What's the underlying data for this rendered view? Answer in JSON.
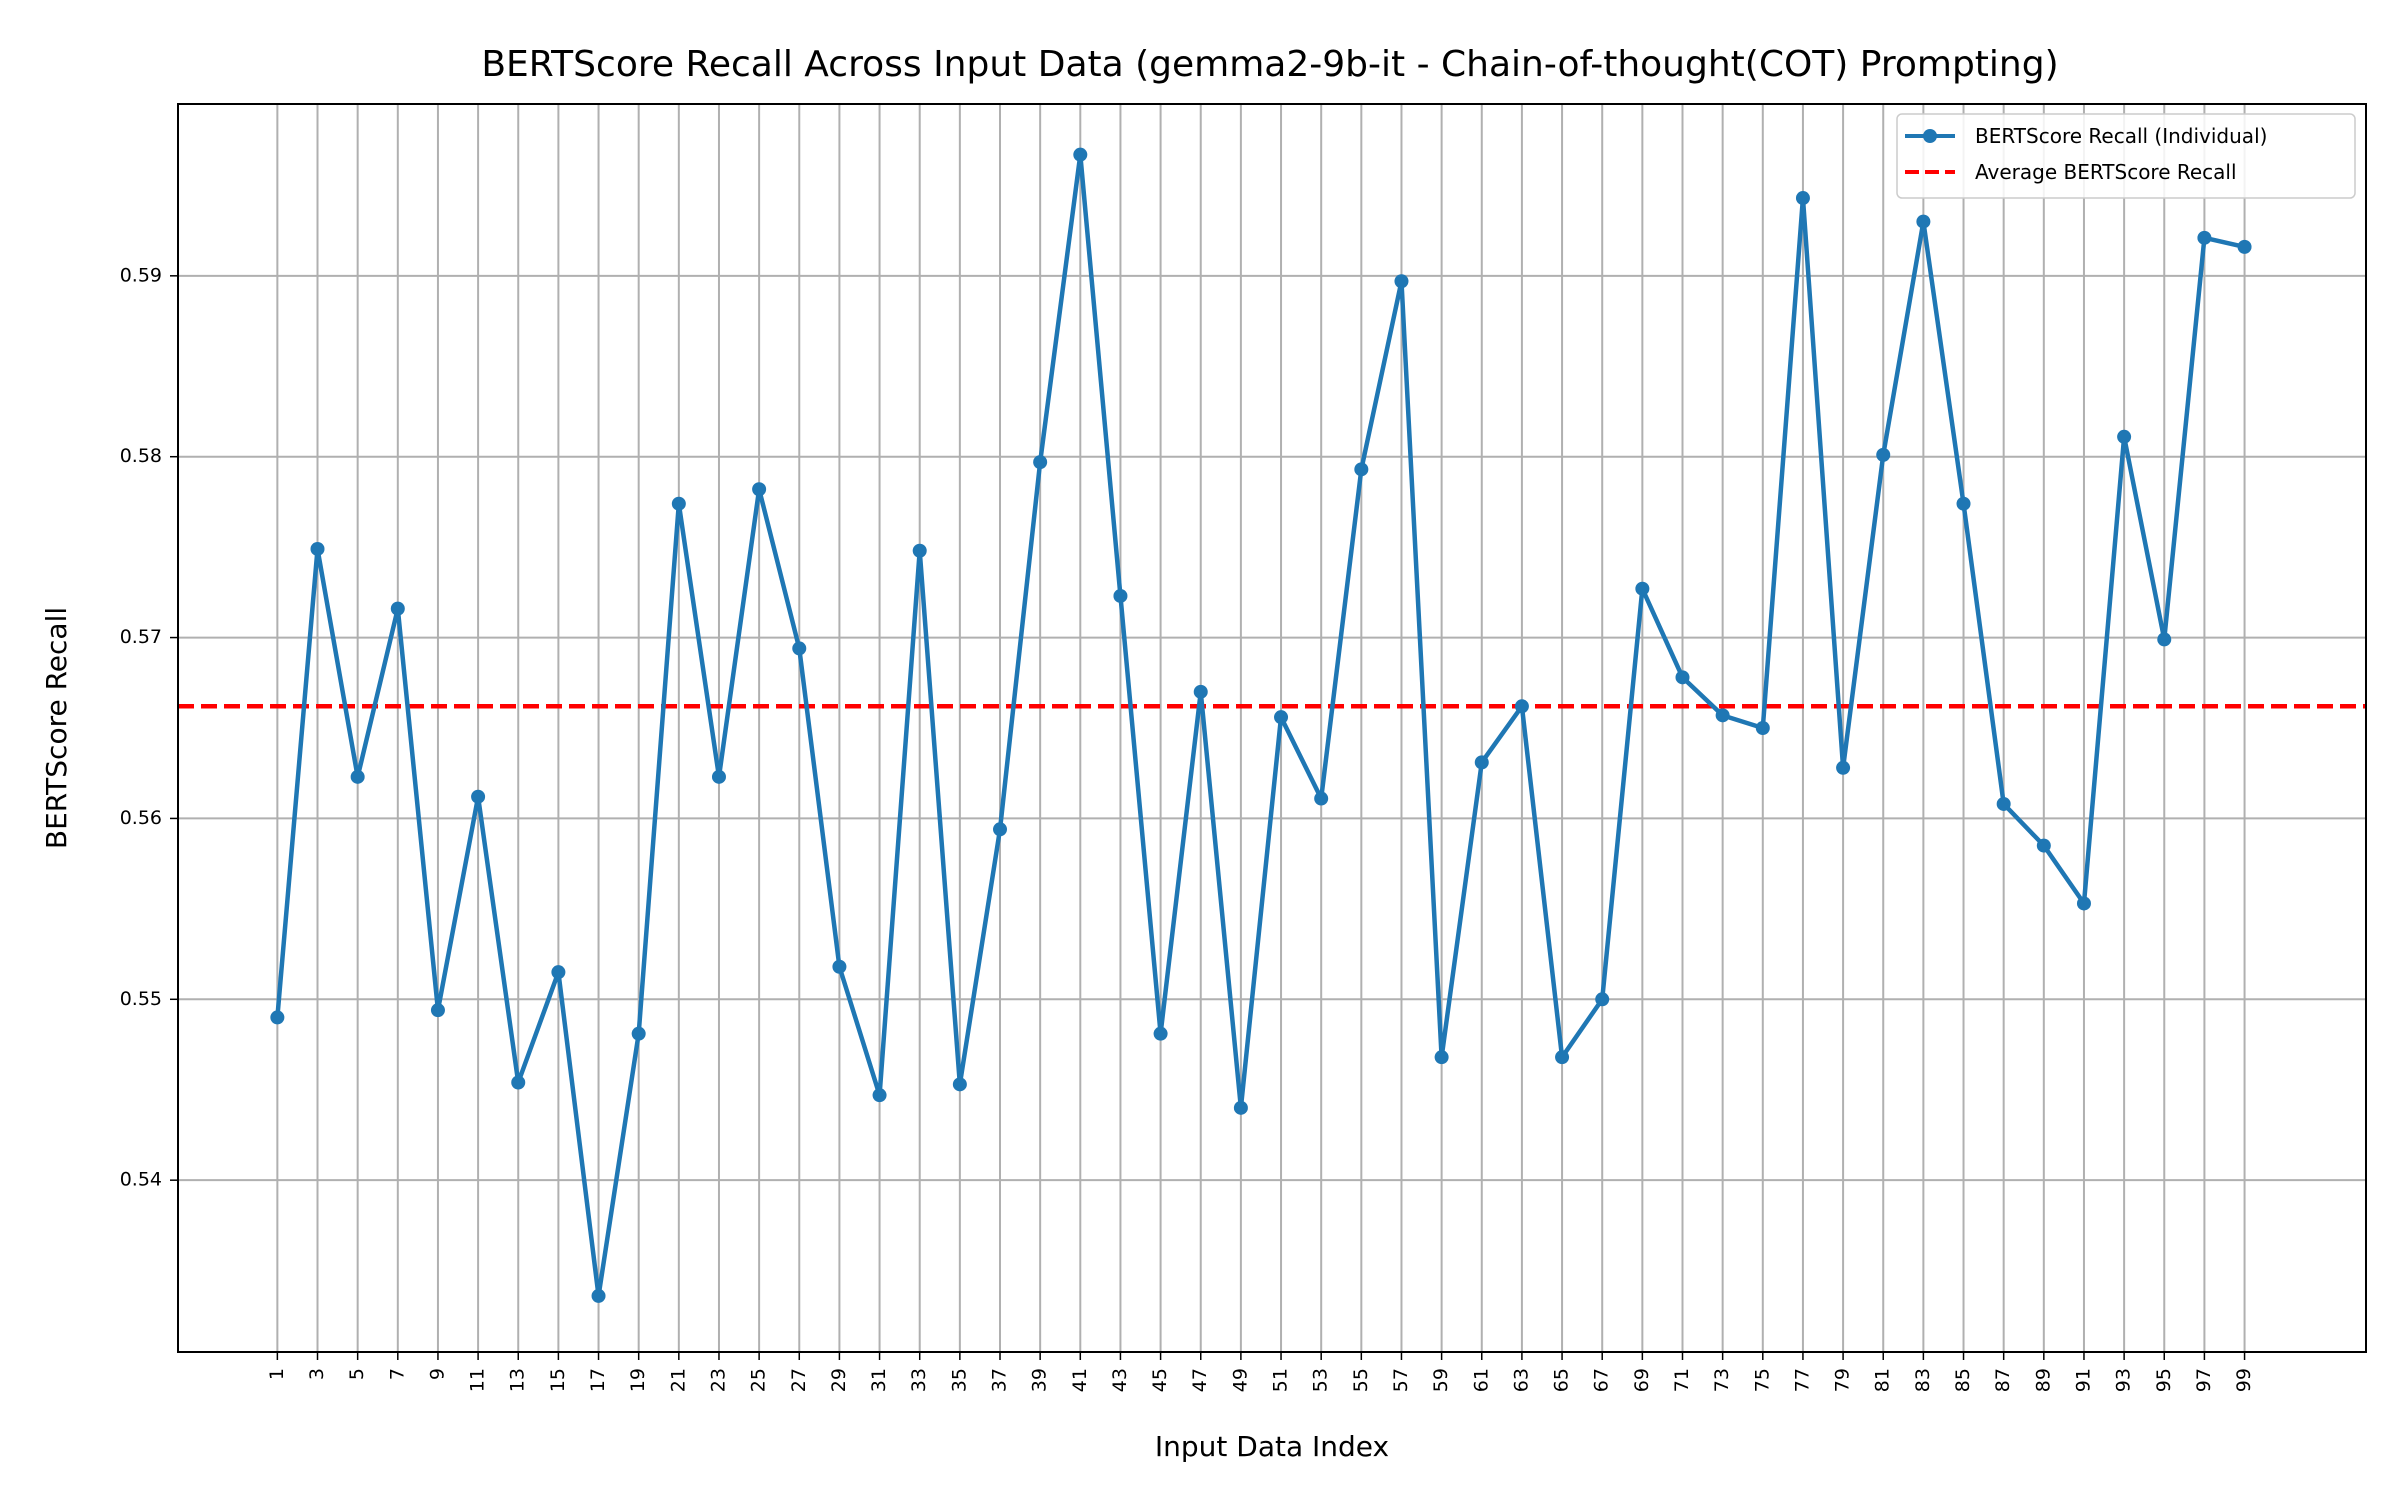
{
  "chart_data": {
    "type": "line",
    "title": "BERTScore Recall Across Input Data (gemma2-9b-it - Chain-of-thought(COT) Prompting)",
    "xlabel": "Input Data Index",
    "ylabel": "BERTScore Recall",
    "x": [
      1,
      3,
      5,
      7,
      9,
      11,
      13,
      15,
      17,
      19,
      21,
      23,
      25,
      27,
      29,
      31,
      33,
      35,
      37,
      39,
      41,
      43,
      45,
      47,
      49,
      51,
      53,
      55,
      57,
      59,
      61,
      63,
      65,
      67,
      69,
      71,
      73,
      75,
      77,
      79,
      81,
      83,
      85,
      87,
      89,
      91,
      93,
      95,
      97,
      99
    ],
    "xticks": [
      "1",
      "3",
      "5",
      "7",
      "9",
      "11",
      "13",
      "15",
      "17",
      "19",
      "21",
      "23",
      "25",
      "27",
      "29",
      "31",
      "33",
      "35",
      "37",
      "39",
      "41",
      "43",
      "45",
      "47",
      "49",
      "51",
      "53",
      "55",
      "57",
      "59",
      "61",
      "63",
      "65",
      "67",
      "69",
      "71",
      "73",
      "75",
      "77",
      "79",
      "81",
      "83",
      "85",
      "87",
      "89",
      "91",
      "93",
      "95",
      "97",
      "99"
    ],
    "yticks": [
      "0.54",
      "0.55",
      "0.56",
      "0.57",
      "0.58",
      "0.59"
    ],
    "xlim": [
      -3.95,
      105.05
    ],
    "ylim": [
      0.5305,
      0.5995
    ],
    "grid": true,
    "legend_position": "top-right",
    "series": [
      {
        "name": "BERTScore Recall (Individual)",
        "color": "#1f77b4",
        "style": "solid-with-markers",
        "values": [
          0.549,
          0.5749,
          0.5623,
          0.5716,
          0.5494,
          0.5612,
          0.5454,
          0.5515,
          0.5336,
          0.5481,
          0.5774,
          0.5623,
          0.5782,
          0.5694,
          0.5518,
          0.5447,
          0.5748,
          0.5453,
          0.5594,
          0.5797,
          0.5967,
          0.5723,
          0.5481,
          0.567,
          0.544,
          0.5656,
          0.5611,
          0.5793,
          0.5897,
          0.5468,
          0.5631,
          0.5662,
          0.5468,
          0.55,
          0.5727,
          0.5678,
          0.5657,
          0.565,
          0.5943,
          0.5628,
          0.5801,
          0.593,
          0.5774,
          0.5608,
          0.5585,
          0.5553,
          0.5811,
          0.5699,
          0.5921,
          0.5916
        ]
      },
      {
        "name": "Average BERTScore Recall",
        "color": "#ff0000",
        "style": "dashed",
        "value": 0.5662
      }
    ]
  }
}
